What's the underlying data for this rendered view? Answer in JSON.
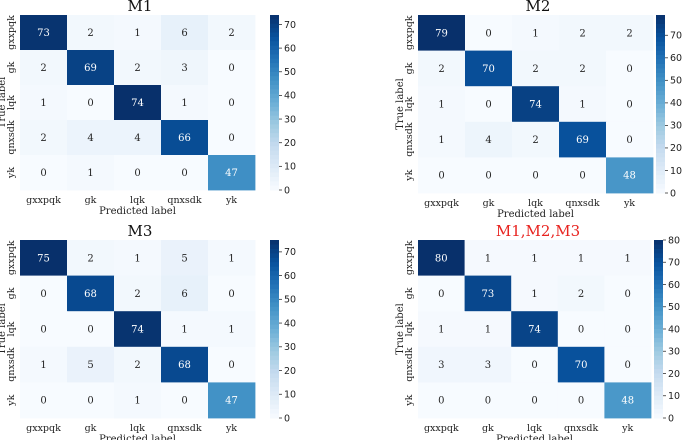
{
  "chart_data": [
    {
      "type": "heatmap",
      "title": "M1",
      "title_color": "#111111",
      "xlabel": "Predicted label",
      "ylabel": "True label",
      "categories": [
        "gxxpqk",
        "gk",
        "lqk",
        "qnxsdk",
        "yk"
      ],
      "matrix": [
        [
          73,
          2,
          1,
          6,
          2
        ],
        [
          2,
          69,
          2,
          3,
          0
        ],
        [
          1,
          0,
          74,
          1,
          0
        ],
        [
          2,
          4,
          4,
          66,
          0
        ],
        [
          0,
          1,
          0,
          0,
          47
        ]
      ],
      "vmax": 74,
      "colorbar_ticks": [
        0,
        10,
        20,
        30,
        40,
        50,
        60,
        70
      ]
    },
    {
      "type": "heatmap",
      "title": "M2",
      "title_color": "#111111",
      "xlabel": "Predicted label",
      "ylabel": "True label",
      "categories": [
        "gxxpqk",
        "gk",
        "lqk",
        "qnxsdk",
        "yk"
      ],
      "matrix": [
        [
          79,
          0,
          1,
          2,
          2
        ],
        [
          2,
          70,
          2,
          2,
          0
        ],
        [
          1,
          0,
          74,
          1,
          0
        ],
        [
          1,
          4,
          2,
          69,
          0
        ],
        [
          0,
          0,
          0,
          0,
          48
        ]
      ],
      "vmax": 79,
      "colorbar_ticks": [
        0,
        10,
        20,
        30,
        40,
        50,
        60,
        70
      ]
    },
    {
      "type": "heatmap",
      "title": "M3",
      "title_color": "#111111",
      "xlabel": "Predicted label",
      "ylabel": "True label",
      "categories": [
        "gxxpqk",
        "gk",
        "lqk",
        "qnxsdk",
        "yk"
      ],
      "matrix": [
        [
          75,
          2,
          1,
          5,
          1
        ],
        [
          0,
          68,
          2,
          6,
          0
        ],
        [
          0,
          0,
          74,
          1,
          1
        ],
        [
          1,
          5,
          2,
          68,
          0
        ],
        [
          0,
          0,
          1,
          0,
          47
        ]
      ],
      "vmax": 75,
      "colorbar_ticks": [
        0,
        10,
        20,
        30,
        40,
        50,
        60,
        70
      ]
    },
    {
      "type": "heatmap",
      "title": "M1,M2,M3",
      "title_color": "#e8231f",
      "xlabel": "Predicted label",
      "ylabel": "True label",
      "categories": [
        "gxxpqk",
        "gk",
        "lqk",
        "qnxsdk",
        "yk"
      ],
      "matrix": [
        [
          80,
          1,
          1,
          1,
          1
        ],
        [
          0,
          73,
          1,
          2,
          0
        ],
        [
          1,
          1,
          74,
          0,
          0
        ],
        [
          3,
          3,
          0,
          70,
          0
        ],
        [
          0,
          0,
          0,
          0,
          48
        ]
      ],
      "vmax": 80,
      "colorbar_ticks": [
        0,
        10,
        20,
        30,
        40,
        50,
        60,
        70,
        80
      ]
    }
  ]
}
